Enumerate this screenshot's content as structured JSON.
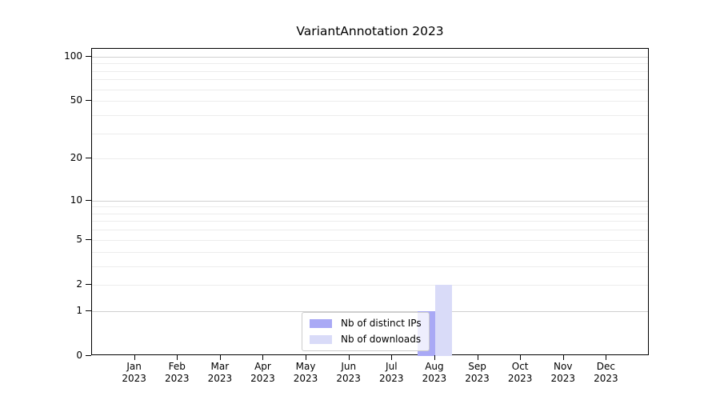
{
  "chart_data": {
    "type": "bar",
    "title": "VariantAnnotation 2023",
    "categories": [
      "Jan\n2023",
      "Feb\n2023",
      "Mar\n2023",
      "Apr\n2023",
      "May\n2023",
      "Jun\n2023",
      "Jul\n2023",
      "Aug\n2023",
      "Sep\n2023",
      "Oct\n2023",
      "Nov\n2023",
      "Dec\n2023"
    ],
    "series": [
      {
        "name": "Nb of distinct IPs",
        "color": "#a9a9f5",
        "values": [
          0,
          0,
          0,
          0,
          0,
          0,
          0,
          1,
          0,
          0,
          0,
          0
        ]
      },
      {
        "name": "Nb of downloads",
        "color": "#d9dbf8",
        "values": [
          0,
          0,
          0,
          0,
          0,
          0,
          0,
          2,
          0,
          0,
          0,
          0
        ]
      }
    ],
    "xlabel": "",
    "ylabel": "",
    "y_scale": "log1p",
    "ylim": [
      0,
      113
    ],
    "y_tick_values": [
      0,
      1,
      2,
      5,
      10,
      20,
      50,
      100
    ],
    "y_major_gridlines": [
      1,
      10,
      100
    ],
    "y_minor_gridlines": [
      2,
      3,
      4,
      5,
      6,
      7,
      8,
      9,
      20,
      30,
      40,
      50,
      60,
      70,
      80,
      90
    ],
    "grid": "horizontal",
    "legend_position": "bottom-center",
    "colors": {
      "axis": "#000000",
      "major_grid": "#d0d0d0",
      "minor_grid": "#ececec",
      "legend_border": "#cccccc",
      "background": "#ffffff"
    }
  }
}
